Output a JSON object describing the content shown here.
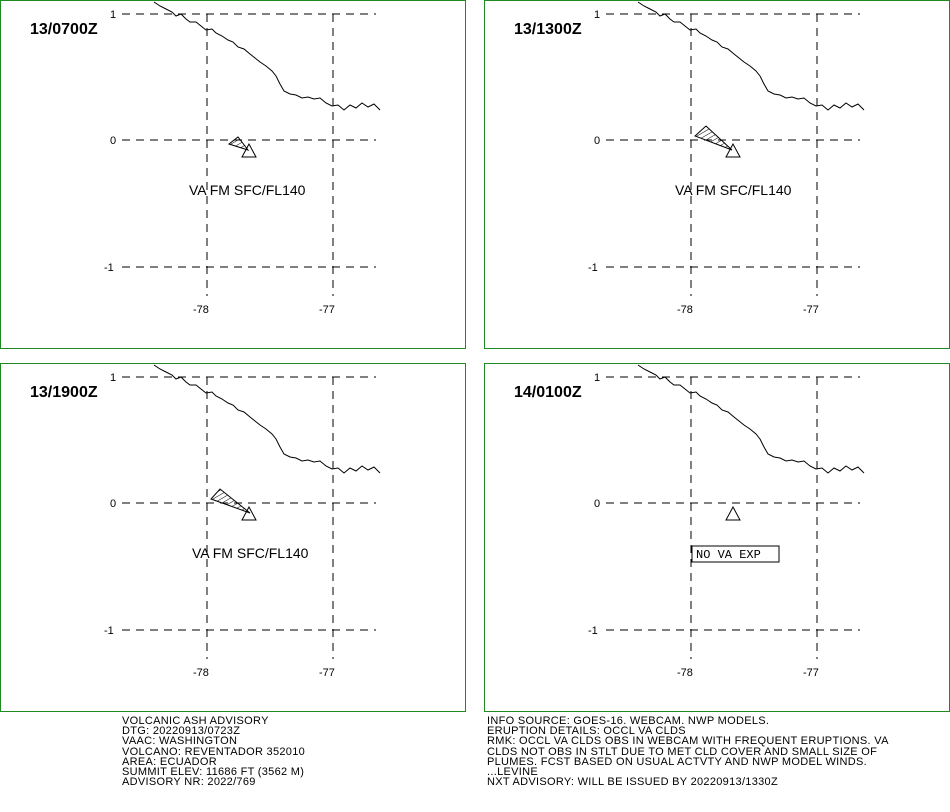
{
  "panels": [
    {
      "time": "13/0700Z",
      "label": "VA FM SFC/FL140",
      "label_boxed": false,
      "plume": "small"
    },
    {
      "time": "13/1300Z",
      "label": "VA FM SFC/FL140",
      "label_boxed": false,
      "plume": "medium"
    },
    {
      "time": "13/1900Z",
      "label": "VA FM SFC/FL140",
      "label_boxed": false,
      "plume": "large"
    },
    {
      "time": "14/0100Z",
      "label": "NO VA EXP",
      "label_boxed": true,
      "plume": "none"
    }
  ],
  "axis": {
    "lat_labels": [
      "1",
      "0",
      "-1"
    ],
    "lon_labels": [
      "-78",
      "-77"
    ]
  },
  "colors": {
    "frame": "#1f8a1f",
    "lines": "#000000"
  },
  "advisory_left": [
    "VOLCANIC ASH ADVISORY",
    "DTG: 20220913/0723Z",
    "VAAC: WASHINGTON",
    "VOLCANO: REVENTADOR 352010",
    "AREA: ECUADOR",
    "SUMMIT ELEV: 11686 FT (3562 M)",
    "ADVISORY NR: 2022/769"
  ],
  "advisory_right": [
    "INFO SOURCE: GOES-16. WEBCAM. NWP MODELS.",
    "ERUPTION DETAILS: OCCL VA CLDS",
    "RMK: OCCL VA CLDS OBS IN WEBCAM WITH FREQUENT ERUPTIONS. VA",
    "CLDS NOT OBS IN STLT DUE TO MET CLD COVER AND SMALL SIZE OF",
    "PLUMES. FCST BASED ON USUAL ACTVTY AND NWP MODEL WINDS.",
    "...LEVINE",
    "NXT ADVISORY: WILL BE ISSUED BY 20220913/1330Z"
  ]
}
